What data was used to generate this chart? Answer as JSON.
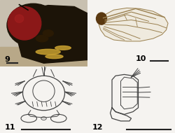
{
  "background_color": "#f0eeeb",
  "panel_labels": [
    "9",
    "10",
    "11",
    "12"
  ],
  "label_fontsize": 8,
  "figure_width": 2.5,
  "figure_height": 1.9,
  "dpi": 100,
  "scalebar_color": "#222222",
  "line_color": "#444444",
  "lw_main": 0.9,
  "lw_bristle": 0.7
}
